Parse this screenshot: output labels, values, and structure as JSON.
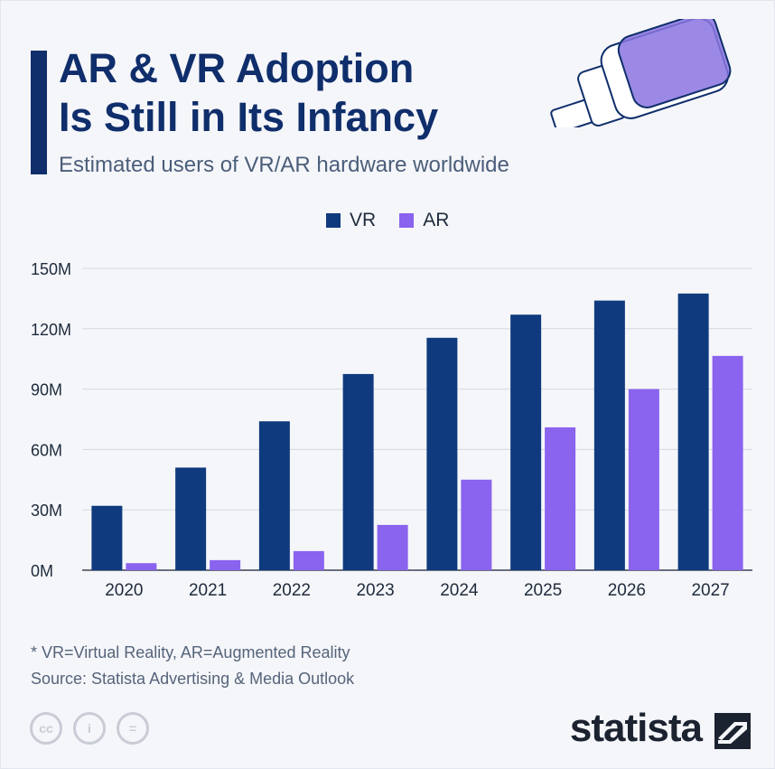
{
  "header": {
    "title_line1": "AR & VR Adoption",
    "title_line2": "Is Still in Its Infancy",
    "subtitle": "Estimated users of VR/AR hardware worldwide"
  },
  "legend": [
    {
      "label": "VR",
      "color": "#0f3a7e"
    },
    {
      "label": "AR",
      "color": "#8a63ee"
    }
  ],
  "chart_data": {
    "type": "bar",
    "categories": [
      "2020",
      "2021",
      "2022",
      "2023",
      "2024",
      "2025",
      "2026",
      "2027"
    ],
    "series": [
      {
        "name": "VR",
        "color": "#0f3a7e",
        "values": [
          32,
          51,
          74,
          97.5,
          115.5,
          127,
          134,
          137.5
        ]
      },
      {
        "name": "AR",
        "color": "#8a63ee",
        "values": [
          3.5,
          5,
          9.5,
          22.5,
          45,
          71,
          90,
          106.5
        ]
      }
    ],
    "yticks": [
      0,
      30,
      60,
      90,
      120,
      150
    ],
    "ytick_labels": [
      "0M",
      "30M",
      "60M",
      "90M",
      "120M",
      "150M"
    ],
    "ylim": [
      0,
      150
    ],
    "grid": true,
    "legend_position": "top-center"
  },
  "footer": {
    "note": "* VR=Virtual Reality, AR=Augmented Reality",
    "source": "Source: Statista Advertising & Media Outlook",
    "brand": "statista",
    "license_icons": [
      "cc-icon",
      "by-icon",
      "nd-icon"
    ]
  }
}
